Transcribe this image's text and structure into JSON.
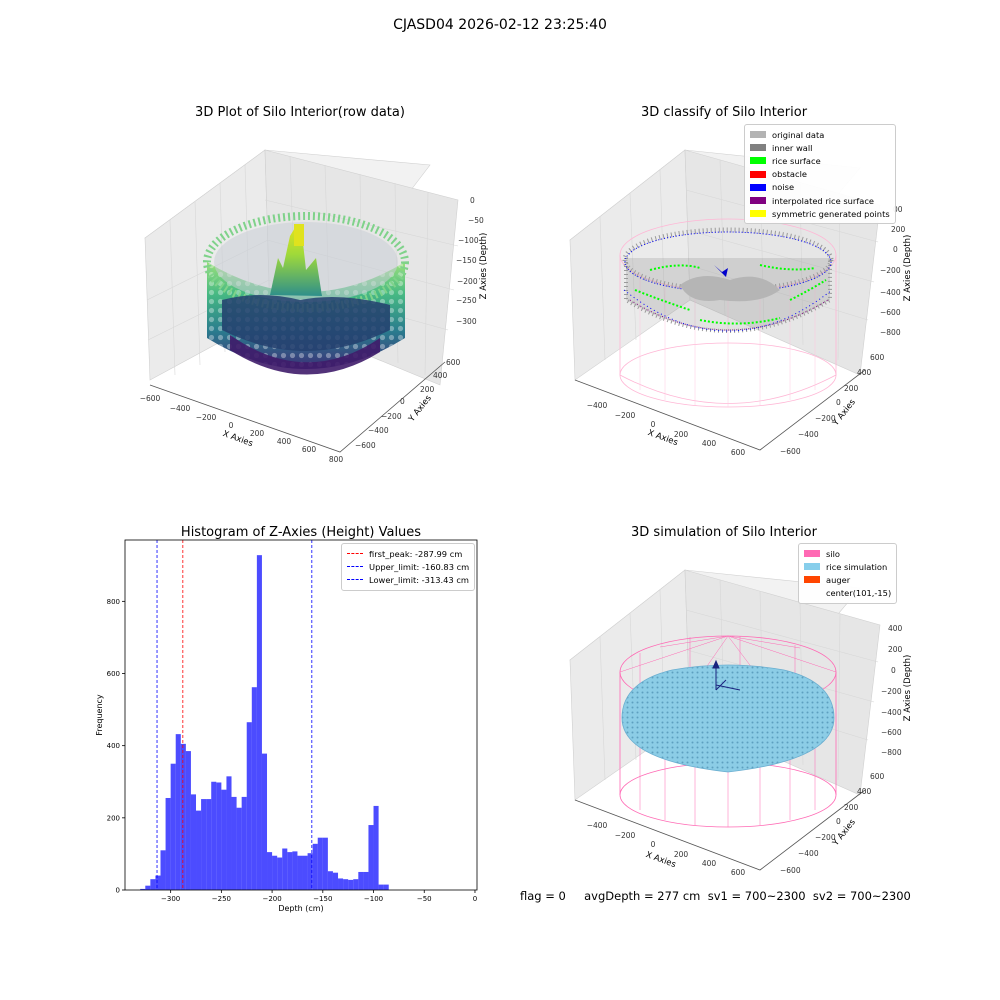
{
  "suptitle": "CJASD04 2026-02-12 23:25:40",
  "panels": {
    "raw": {
      "title": "3D Plot of Silo Interior(row data)",
      "xlabel": "X Axies",
      "ylabel": "Y Axies",
      "zlabel": "Z Axies (Depth)",
      "xticks": [
        "−600",
        "−400",
        "−200",
        "0",
        "200",
        "400",
        "600",
        "800"
      ],
      "yticks": [
        "−600",
        "−400",
        "−200",
        "0",
        "200",
        "400",
        "600"
      ],
      "zticks": [
        "0",
        "−50",
        "−100",
        "−150",
        "−200",
        "−250",
        "−300"
      ]
    },
    "classify": {
      "title": "3D classify of Silo Interior",
      "xlabel": "X Axies",
      "ylabel": "Y Axies",
      "zlabel": "Z Axies (Depth)",
      "xticks": [
        "−400",
        "−200",
        "0",
        "200",
        "400",
        "600"
      ],
      "yticks": [
        "−600",
        "−400",
        "−200",
        "0",
        "200",
        "400",
        "600"
      ],
      "zticks": [
        "200",
        "0",
        "−200",
        "−400",
        "−600",
        "−800"
      ],
      "ztick_top_partial": "00",
      "legend": [
        {
          "label": "original data",
          "color": "#b3b3b3"
        },
        {
          "label": "inner wall",
          "color": "#808080"
        },
        {
          "label": "rice surface",
          "color": "#00ff00"
        },
        {
          "label": "obstacle",
          "color": "#ff0000"
        },
        {
          "label": "noise",
          "color": "#0000ff"
        },
        {
          "label": "interpolated rice surface",
          "color": "#800080"
        },
        {
          "label": "symmetric generated points",
          "color": "#ffff00"
        }
      ]
    },
    "simulation": {
      "title": "3D simulation of Silo Interior",
      "xlabel": "X Axies",
      "ylabel": "Y Axies",
      "zlabel": "Z Axies (Depth)",
      "xticks": [
        "−400",
        "−200",
        "0",
        "200",
        "400",
        "600"
      ],
      "yticks": [
        "−600",
        "−400",
        "−200",
        "0",
        "200",
        "400",
        "600"
      ],
      "zticks": [
        "400",
        "200",
        "0",
        "−200",
        "−400",
        "−600",
        "−800"
      ],
      "legend": [
        {
          "label": "silo",
          "color": "#ff69b4"
        },
        {
          "label": "rice simulation",
          "color": "#87ceeb"
        },
        {
          "label": "auger",
          "color": "#ff4500"
        },
        {
          "label": "center(101,-15)",
          "color": ""
        }
      ]
    }
  },
  "footer": "flag = 0     avgDepth = 277 cm  sv1 = 700~2300  sv2 = 700~2300",
  "colors": {
    "histogram": "#0000ff",
    "first_peak": "#ff0000",
    "limits": "#0000ff",
    "silo": "#ff69b4",
    "rice": "#87ceeb"
  },
  "chart_data": [
    {
      "type": "bar",
      "title": "Histogram of Z-Axies (Height) Values",
      "xlabel": "Depth (cm)",
      "ylabel": "Frequency",
      "xlim": [
        -345,
        2
      ],
      "ylim": [
        0,
        970
      ],
      "xticks": [
        -300,
        -250,
        -200,
        -150,
        -100,
        -50,
        0
      ],
      "xtick_labels": [
        "−300",
        "−250",
        "−200",
        "−150",
        "−100",
        "−50",
        "0"
      ],
      "yticks": [
        0,
        200,
        400,
        600,
        800
      ],
      "bin_start": -330,
      "bin_width": 5,
      "values": [
        3,
        12,
        30,
        40,
        110,
        255,
        350,
        432,
        405,
        385,
        265,
        220,
        252,
        252,
        300,
        298,
        278,
        315,
        258,
        228,
        258,
        465,
        562,
        928,
        378,
        105,
        95,
        90,
        115,
        105,
        107,
        95,
        95,
        102,
        128,
        145,
        145,
        52,
        48,
        32,
        30,
        28,
        30,
        50,
        50,
        180,
        233,
        15,
        15
      ],
      "lines": [
        {
          "label": "first_peak: -287.99 cm",
          "x": -287.99,
          "color": "#ff0000"
        },
        {
          "label": "Upper_limit: -160.83 cm",
          "x": -160.83,
          "color": "#0000ff"
        },
        {
          "label": "Lower_limit: -313.43 cm",
          "x": -313.43,
          "color": "#0000ff"
        }
      ],
      "legend_position": "upper right"
    }
  ]
}
